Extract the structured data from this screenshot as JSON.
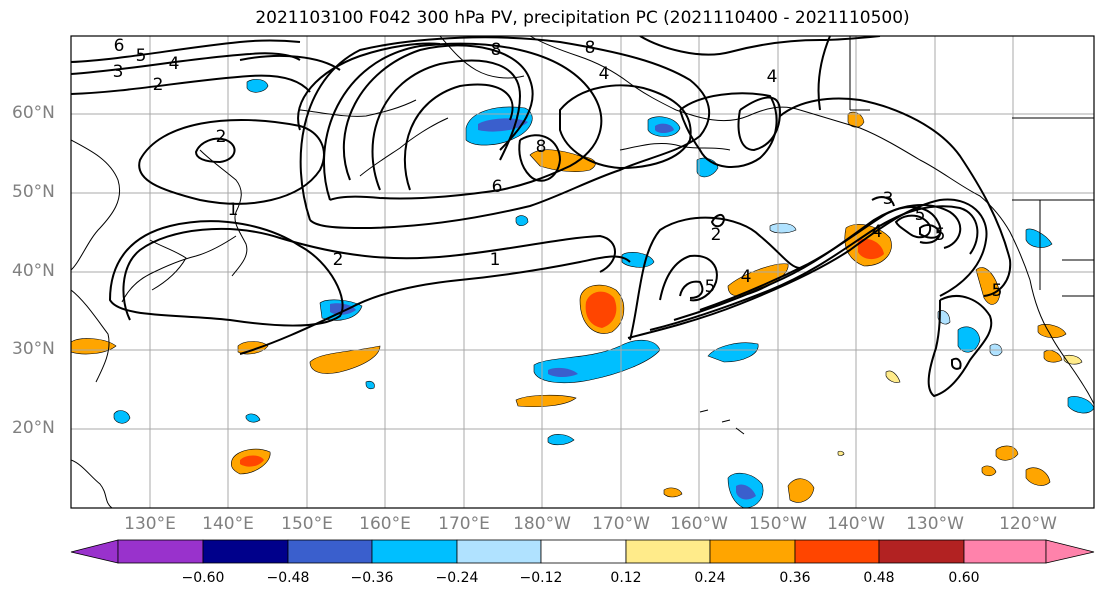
{
  "title": "2021103100 F042 300 hPa PV, precipitation PC (2021110400 - 2021110500)",
  "lat_labels": [
    "60°N",
    "50°N",
    "40°N",
    "30°N",
    "20°N"
  ],
  "lon_labels": [
    "130°E",
    "140°E",
    "150°E",
    "160°E",
    "170°E",
    "180°W",
    "170°W",
    "160°W",
    "150°W",
    "140°W",
    "130°W",
    "120°W"
  ],
  "colorbar": {
    "ticks": [
      "−0.60",
      "−0.48",
      "−0.36",
      "−0.24",
      "−0.12",
      "0.12",
      "0.24",
      "0.36",
      "0.48",
      "0.60"
    ],
    "colors": [
      "#9932cc",
      "#00008b",
      "#3a5fcd",
      "#00bfff",
      "#b0e2ff",
      "#ffffff",
      "#ffeb8a",
      "#ffa500",
      "#ff4500",
      "#b22222",
      "#ff82ab"
    ]
  },
  "contour_labels": [
    "6",
    "5",
    "4",
    "3",
    "2",
    "2",
    "1",
    "2",
    "1",
    "8",
    "8",
    "4",
    "6",
    "8",
    "2",
    "3",
    "5",
    "4",
    "4",
    "5",
    "4",
    "5",
    "5"
  ],
  "colors": {
    "contour": "#000000",
    "coast": "#000000",
    "grid": "#a9a9a9",
    "axis_label": "#808080"
  }
}
